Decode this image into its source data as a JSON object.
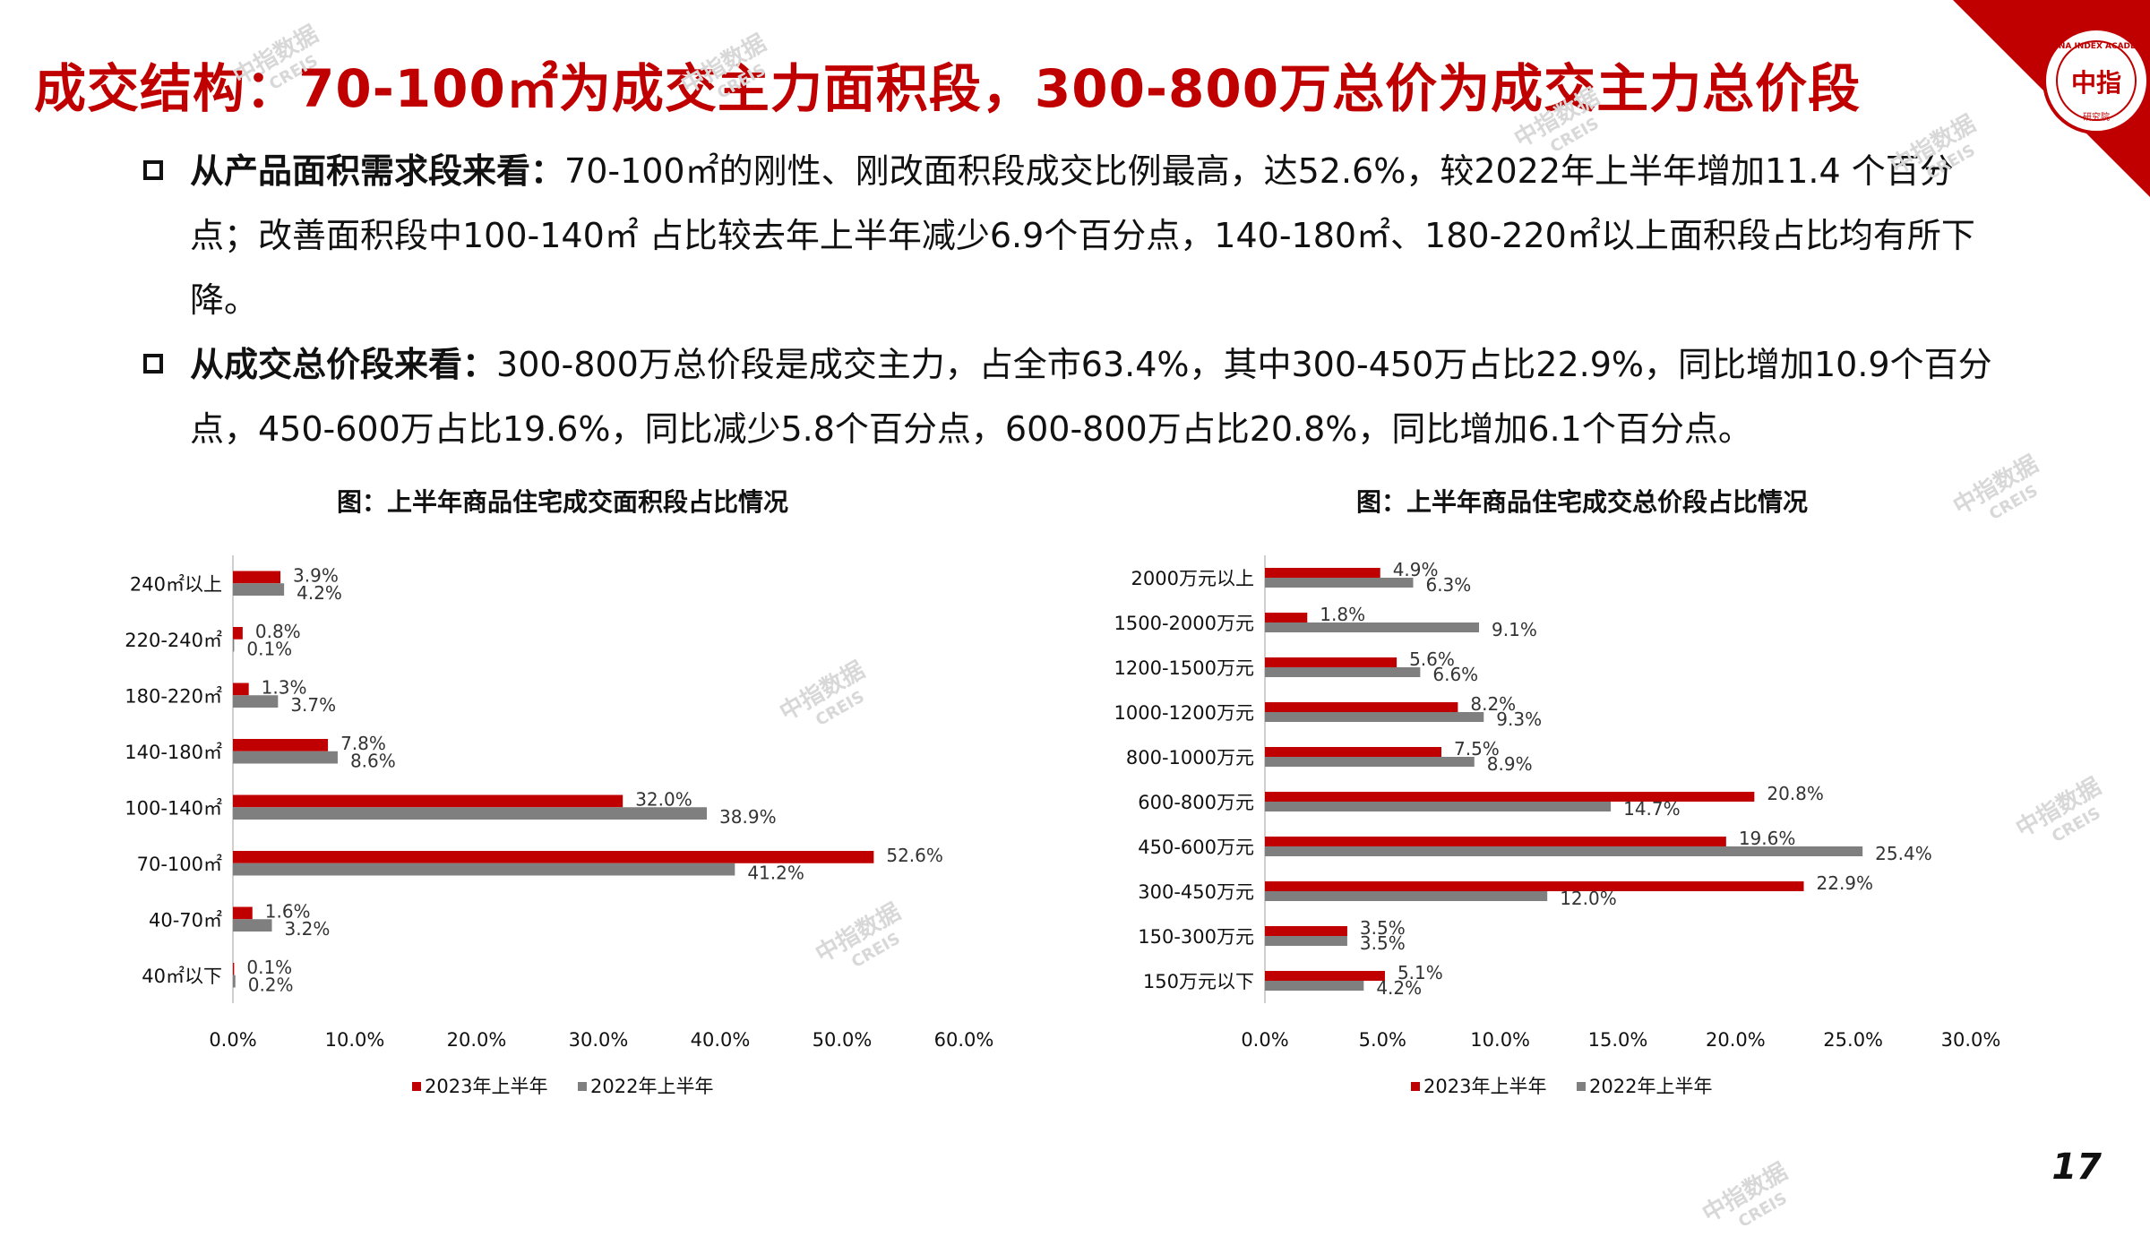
{
  "title": "成交结构：70-100㎡为成交主力面积段，300-800万总价为成交主力总价段",
  "logo": {
    "cn": "中指",
    "text": "CHINA INDEX ACADEMY",
    "sub": "研究院"
  },
  "bullets": [
    {
      "head": "从产品面积需求段来看：",
      "body": "70-100㎡的刚性、刚改面积段成交比例最高，达52.6%，较2022年上半年增加11.4 个百分点；改善面积段中100-140㎡ 占比较去年上半年减少6.9个百分点，140-180㎡、180-220㎡以上面积段占比均有所下降。"
    },
    {
      "head": "从成交总价段来看：",
      "body": "300-800万总价段是成交主力，占全市63.4%，其中300-450万占比22.9%，同比增加10.9个百分点，450-600万占比19.6%，同比减少5.8个百分点，600-800万占比20.8%，同比增加6.1个百分点。"
    }
  ],
  "watermark": {
    "cn": "中指数据",
    "en": "CREIS"
  },
  "page_number": "17",
  "colors": {
    "series_2023": "#c00000",
    "series_2022": "#7f7f7f",
    "title_red": "#c00000"
  },
  "chart_data": [
    {
      "type": "bar",
      "orientation": "horizontal",
      "title": "图：上半年商品住宅成交面积段占比情况",
      "categories": [
        "240㎡以上",
        "220-240㎡",
        "180-220㎡",
        "140-180㎡",
        "100-140㎡",
        "70-100㎡",
        "40-70㎡",
        "40㎡以下"
      ],
      "series": [
        {
          "name": "2023年上半年",
          "values": [
            3.9,
            0.8,
            1.3,
            7.8,
            32.0,
            52.6,
            1.6,
            0.1
          ],
          "color": "#c00000"
        },
        {
          "name": "2022年上半年",
          "values": [
            4.2,
            0.1,
            3.7,
            8.6,
            38.9,
            41.2,
            3.2,
            0.2
          ],
          "color": "#7f7f7f"
        }
      ],
      "xlim": [
        0,
        60
      ],
      "xticks": [
        "0.0%",
        "10.0%",
        "20.0%",
        "30.0%",
        "40.0%",
        "50.0%",
        "60.0%"
      ],
      "legend": "bottom",
      "grid": false
    },
    {
      "type": "bar",
      "orientation": "horizontal",
      "title": "图：上半年商品住宅成交总价段占比情况",
      "categories": [
        "2000万元以上",
        "1500-2000万元",
        "1200-1500万元",
        "1000-1200万元",
        "800-1000万元",
        "600-800万元",
        "450-600万元",
        "300-450万元",
        "150-300万元",
        "150万元以下"
      ],
      "series": [
        {
          "name": "2023年上半年",
          "values": [
            4.9,
            1.8,
            5.6,
            8.2,
            7.5,
            20.8,
            19.6,
            22.9,
            3.5,
            5.1
          ],
          "color": "#c00000"
        },
        {
          "name": "2022年上半年",
          "values": [
            6.3,
            9.1,
            6.6,
            9.3,
            8.9,
            14.7,
            25.4,
            12.0,
            3.5,
            4.2
          ],
          "color": "#7f7f7f"
        }
      ],
      "xlim": [
        0,
        30
      ],
      "xticks": [
        "0.0%",
        "5.0%",
        "10.0%",
        "15.0%",
        "20.0%",
        "25.0%",
        "30.0%"
      ],
      "legend": "bottom",
      "grid": false
    }
  ]
}
